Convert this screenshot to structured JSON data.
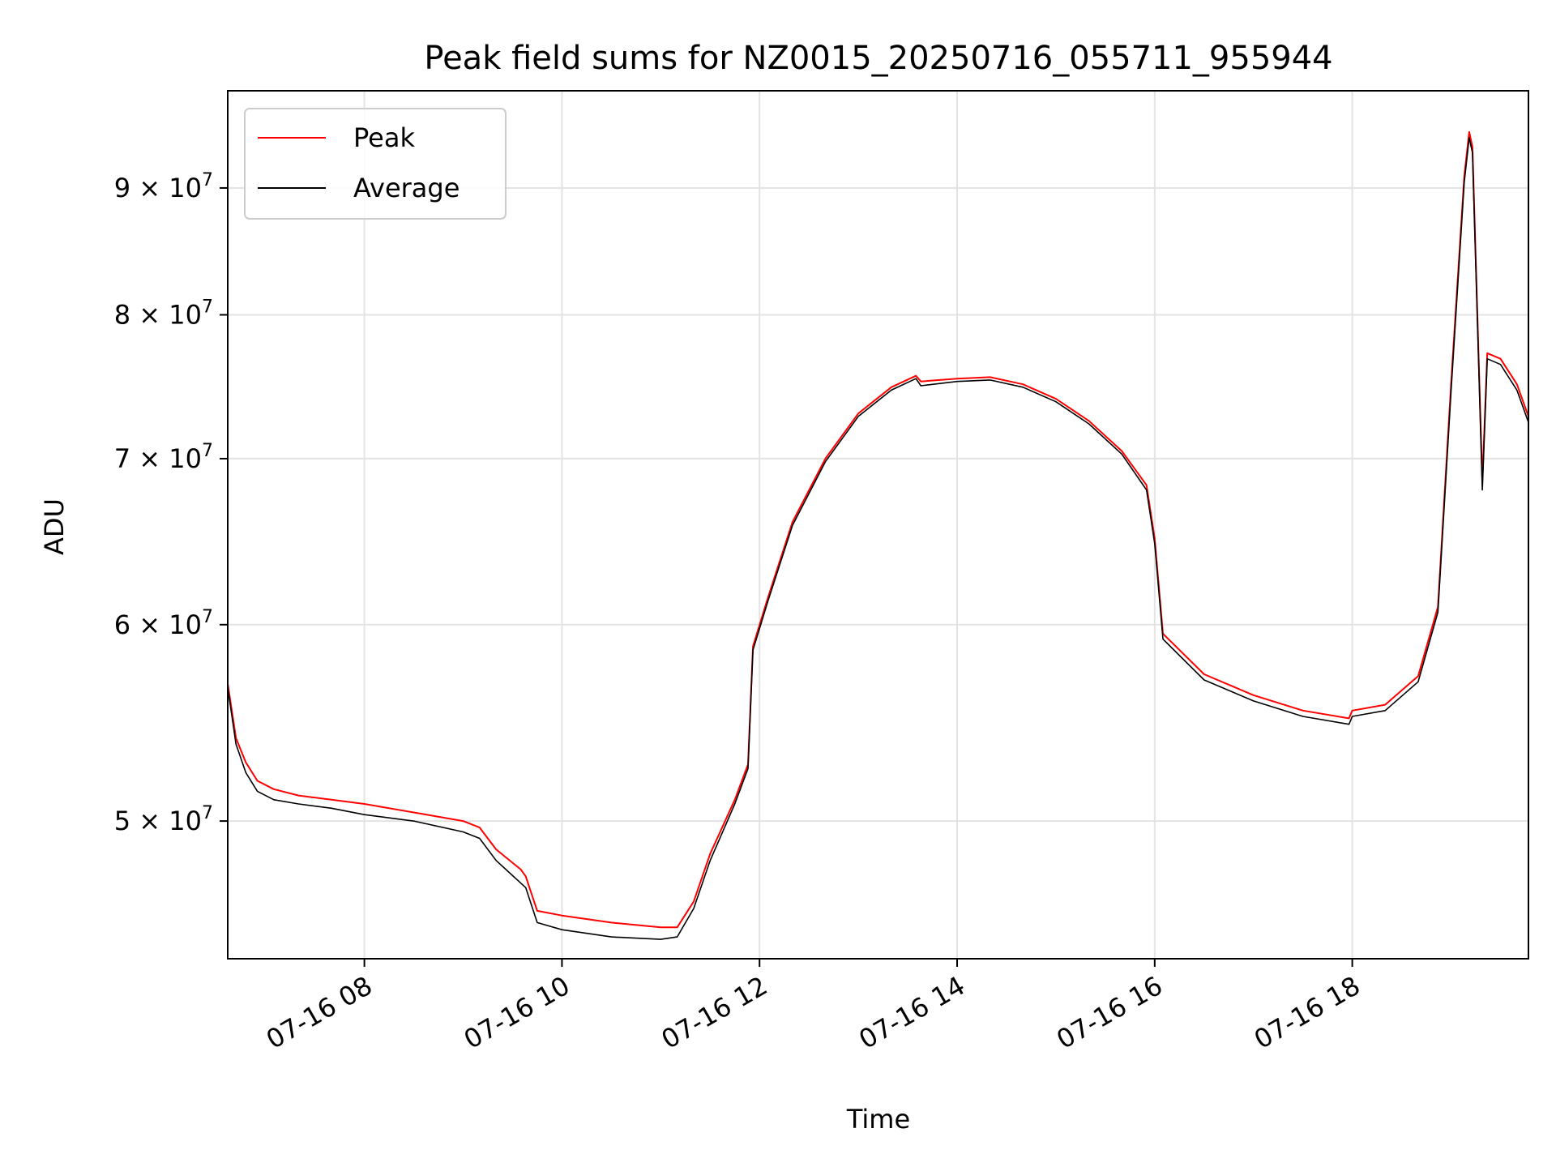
{
  "chart_data": {
    "type": "line",
    "title": "Peak field sums for NZ0015_20250716_055711_955944",
    "xlabel": "Time",
    "ylabel": "ADU",
    "y_scale": "log",
    "ylim": [
      44000000,
      98500000
    ],
    "xlim": [
      "07-16 06:37",
      "07-16 19:47"
    ],
    "grid": true,
    "legend_position": "upper left",
    "x_ticks": [
      {
        "value": "07-16 08:00",
        "label": "07-16 08"
      },
      {
        "value": "07-16 10:00",
        "label": "07-16 10"
      },
      {
        "value": "07-16 12:00",
        "label": "07-16 12"
      },
      {
        "value": "07-16 14:00",
        "label": "07-16 14"
      },
      {
        "value": "07-16 16:00",
        "label": "07-16 16"
      },
      {
        "value": "07-16 18:00",
        "label": "07-16 18"
      }
    ],
    "y_ticks": [
      {
        "value": 50000000,
        "mantissa": "5",
        "times": "×",
        "base": "10",
        "exp": "7"
      },
      {
        "value": 60000000,
        "mantissa": "6",
        "times": "×",
        "base": "10",
        "exp": "7"
      },
      {
        "value": 70000000,
        "mantissa": "7",
        "times": "×",
        "base": "10",
        "exp": "7"
      },
      {
        "value": 80000000,
        "mantissa": "8",
        "times": "×",
        "base": "10",
        "exp": "7"
      },
      {
        "value": 90000000,
        "mantissa": "9",
        "times": "×",
        "base": "10",
        "exp": "7"
      }
    ],
    "x": [
      "07-16 06:37",
      "07-16 06:42",
      "07-16 06:48",
      "07-16 06:55",
      "07-16 07:05",
      "07-16 07:20",
      "07-16 07:40",
      "07-16 08:00",
      "07-16 08:30",
      "07-16 09:00",
      "07-16 09:10",
      "07-16 09:20",
      "07-16 09:35",
      "07-16 09:38",
      "07-16 09:45",
      "07-16 10:00",
      "07-16 10:30",
      "07-16 11:00",
      "07-16 11:10",
      "07-16 11:20",
      "07-16 11:30",
      "07-16 11:45",
      "07-16 11:53",
      "07-16 11:56",
      "07-16 12:05",
      "07-16 12:20",
      "07-16 12:40",
      "07-16 13:00",
      "07-16 13:20",
      "07-16 13:35",
      "07-16 13:38",
      "07-16 14:00",
      "07-16 14:20",
      "07-16 14:40",
      "07-16 15:00",
      "07-16 15:20",
      "07-16 15:40",
      "07-16 15:55",
      "07-16 16:00",
      "07-16 16:05",
      "07-16 16:30",
      "07-16 17:00",
      "07-16 17:30",
      "07-16 17:58",
      "07-16 18:00",
      "07-16 18:20",
      "07-16 18:40",
      "07-16 18:52",
      "07-16 19:00",
      "07-16 19:08",
      "07-16 19:11",
      "07-16 19:13",
      "07-16 19:19",
      "07-16 19:22",
      "07-16 19:30",
      "07-16 19:40",
      "07-16 19:47"
    ],
    "series": [
      {
        "name": "Peak",
        "color": "#ff0000",
        "values": [
          56800000,
          54000000,
          52800000,
          51900000,
          51500000,
          51200000,
          51000000,
          50800000,
          50400000,
          50000000,
          49700000,
          48700000,
          47800000,
          47500000,
          46000000,
          45800000,
          45500000,
          45300000,
          45300000,
          46400000,
          48500000,
          51000000,
          52700000,
          58800000,
          61500000,
          66000000,
          70000000,
          73000000,
          74800000,
          75600000,
          75200000,
          75400000,
          75500000,
          75000000,
          74000000,
          72500000,
          70500000,
          68300000,
          65000000,
          59500000,
          57300000,
          56200000,
          55400000,
          55000000,
          55400000,
          55700000,
          57200000,
          61000000,
          75000000,
          91000000,
          94800000,
          93500000,
          68500000,
          77200000,
          76800000,
          75000000,
          72800000
        ]
      },
      {
        "name": "Average",
        "color": "#000000",
        "values": [
          56600000,
          53700000,
          52300000,
          51400000,
          51000000,
          50800000,
          50600000,
          50300000,
          50000000,
          49500000,
          49200000,
          48200000,
          47200000,
          47000000,
          45500000,
          45200000,
          44900000,
          44800000,
          44900000,
          46100000,
          48200000,
          50800000,
          52500000,
          58600000,
          61300000,
          65800000,
          69800000,
          72800000,
          74600000,
          75400000,
          74900000,
          75200000,
          75300000,
          74800000,
          73800000,
          72300000,
          70300000,
          68000000,
          64700000,
          59200000,
          57000000,
          55900000,
          55100000,
          54700000,
          55100000,
          55400000,
          56900000,
          60700000,
          74500000,
          90500000,
          94300000,
          93000000,
          68000000,
          76800000,
          76400000,
          74600000,
          72400000
        ]
      }
    ]
  }
}
